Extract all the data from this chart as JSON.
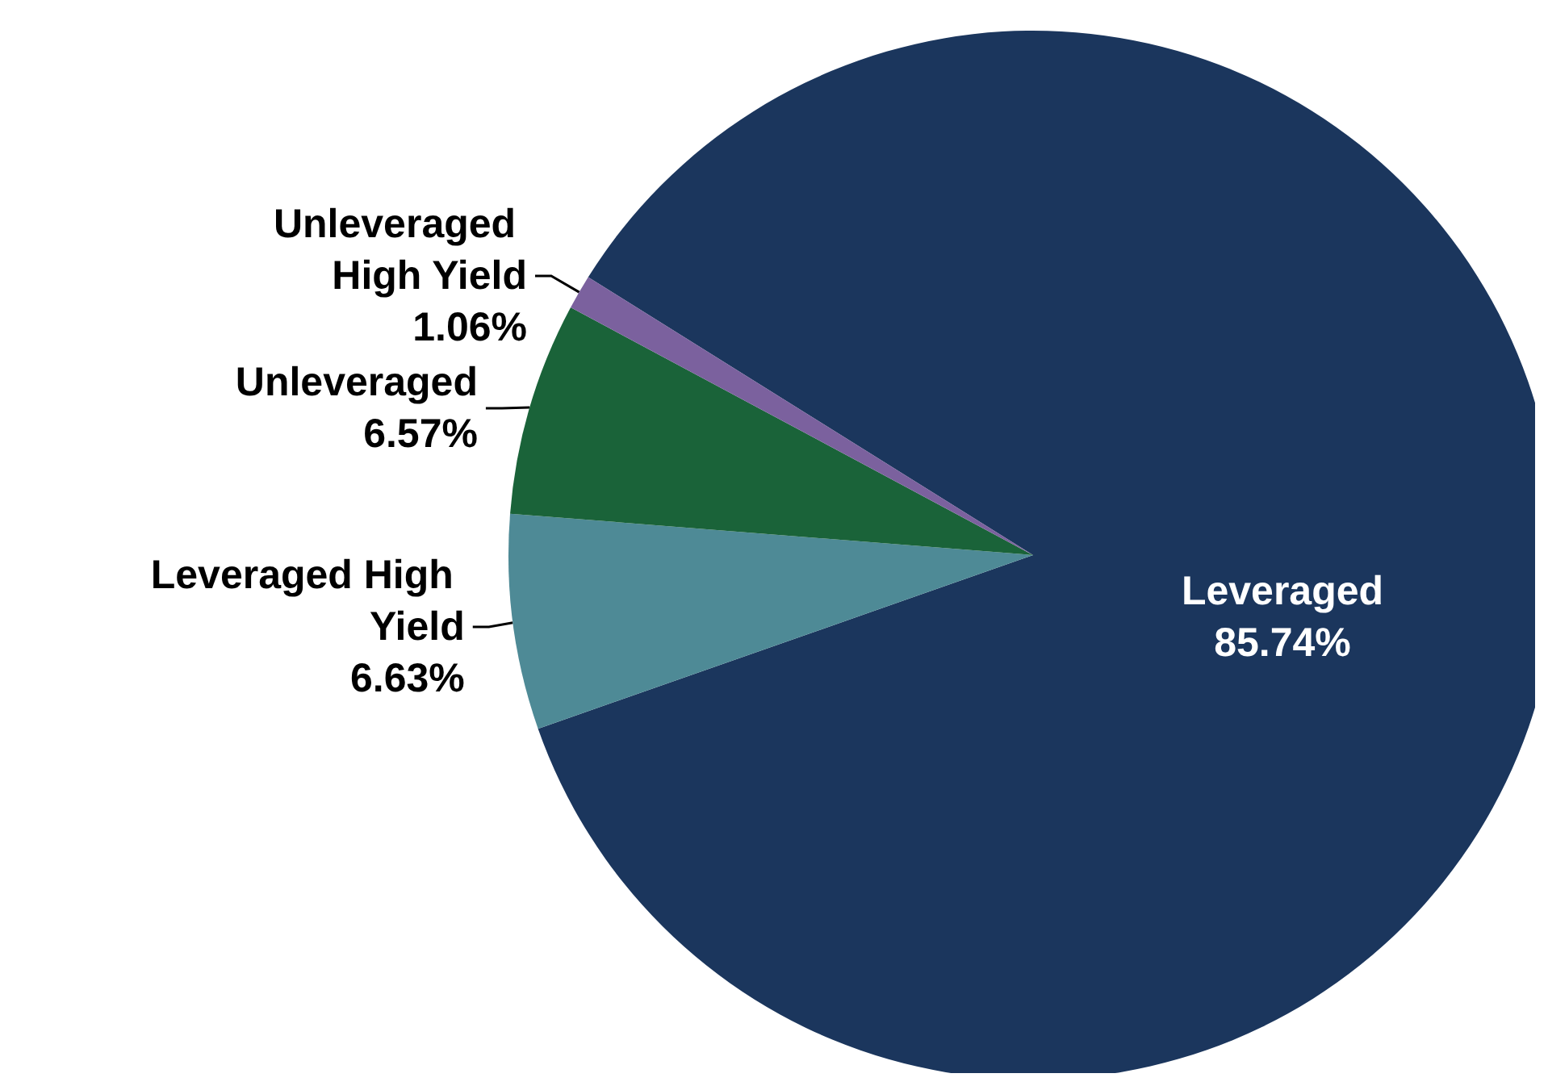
{
  "chart_data": {
    "type": "pie",
    "categories": [
      "Leveraged",
      "Leveraged High Yield",
      "Unleveraged",
      "Unleveraged High Yield"
    ],
    "values": [
      85.74,
      6.63,
      6.57,
      1.06
    ],
    "value_labels": [
      "85.74%",
      "6.63%",
      "6.57%",
      "1.06%"
    ],
    "colors": [
      "#1b365d",
      "#4e8a96",
      "#1a6339",
      "#7b619e"
    ]
  }
}
